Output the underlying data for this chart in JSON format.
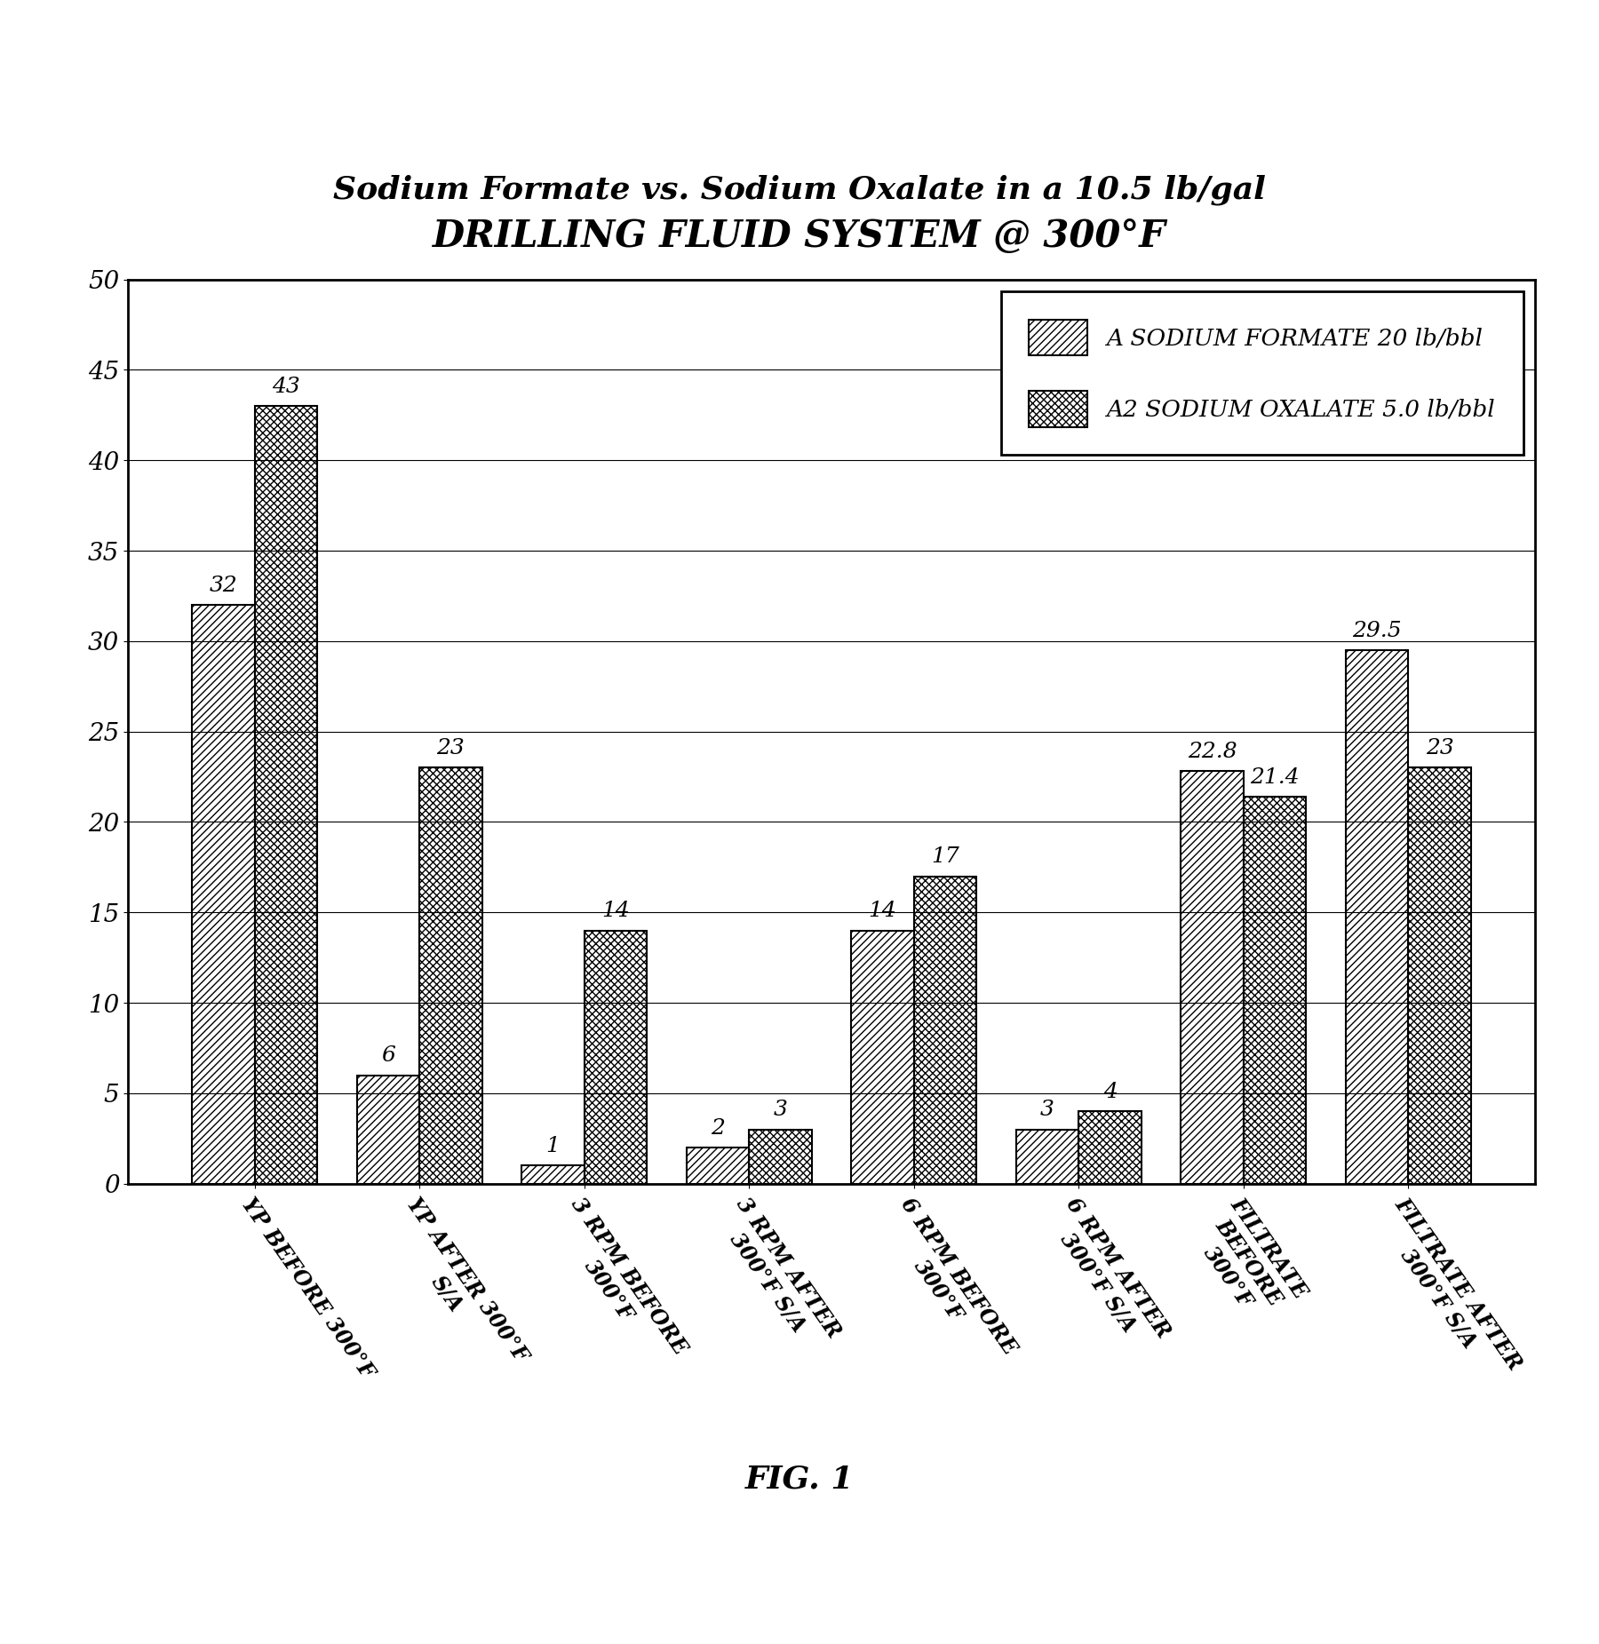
{
  "title_line1": "Sodium Formate vs. Sodium Oxalate in a 10.5 lb/gal",
  "title_line2": "DRILLING FLUID SYSTEM @ 300°F",
  "categories": [
    "YP BEFORE 300°F",
    "YP AFTER 300°F\nS/A",
    "3 RPM BEFORE\n300°F",
    "3 RPM AFTER\n300°F S/A",
    "6 RPM BEFORE\n300°F",
    "6 RPM AFTER\n300°F S/A",
    "FILTRATE\nBEFORE\n300°F",
    "FILTRATE AFTER\n300°F S/A"
  ],
  "series_a_values": [
    32,
    6,
    1,
    2,
    14,
    3,
    22.8,
    29.5
  ],
  "series_a2_values": [
    43,
    23,
    14,
    3,
    17,
    4,
    21.4,
    23
  ],
  "series_a_label": "A SODIUM FORMATE 20 lb/bbl",
  "series_a2_label": "A2 SODIUM OXALATE 5.0 lb/bbl",
  "series_a_hatch": "////",
  "series_a2_hatch": "xxxx",
  "bar_color": "white",
  "bar_edgecolor": "black",
  "ylim": [
    0,
    50
  ],
  "yticks": [
    0,
    5,
    10,
    15,
    20,
    25,
    30,
    35,
    40,
    45,
    50
  ],
  "fig_caption": "FIG. 1",
  "background_color": "white",
  "title1_fontsize": 26,
  "title2_fontsize": 30,
  "label_fontsize": 17,
  "tick_fontsize": 20,
  "annotation_fontsize": 18,
  "legend_fontsize": 19,
  "caption_fontsize": 26,
  "bar_width": 0.38
}
